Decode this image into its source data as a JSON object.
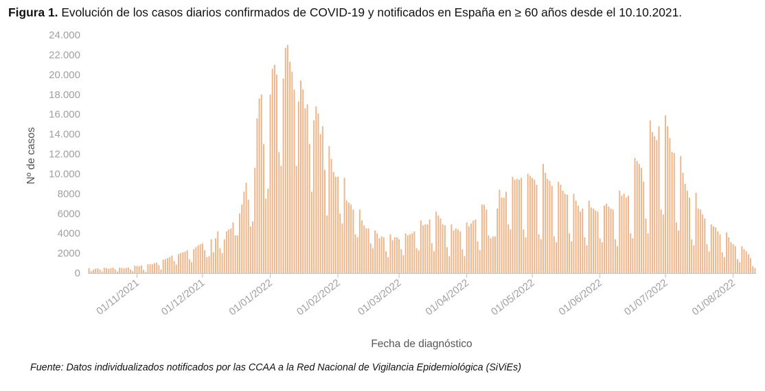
{
  "figure": {
    "label": "Figura 1.",
    "title": "Evolución de los casos diarios confirmados de COVID-19 y notificados en España en ≥ 60 años desde el 10.10.2021.",
    "source": "Fuente: Datos individualizados notificados por las CCAA a la Red Nacional de Vigilancia Epidemiológica (SiViEs)"
  },
  "colors": {
    "bar": "#f0b487",
    "axis": "#bdbdbd"
  },
  "chart_data": {
    "type": "bar",
    "title": "Evolución de los casos diarios confirmados de COVID-19 y notificados en España en ≥ 60 años desde el 10.10.2021.",
    "xlabel": "Fecha de diagnóstico",
    "ylabel": "Nº de casos",
    "ylim": [
      0,
      24000
    ],
    "grid": false,
    "x_start": "2021-10-10",
    "x_end": "2022-08-17",
    "y_ticks": [
      {
        "value": 0,
        "label": "0"
      },
      {
        "value": 2000,
        "label": "2000"
      },
      {
        "value": 4000,
        "label": "4000"
      },
      {
        "value": 6000,
        "label": "6000"
      },
      {
        "value": 8000,
        "label": "8000"
      },
      {
        "value": 10000,
        "label": "10.000"
      },
      {
        "value": 12000,
        "label": "12.000"
      },
      {
        "value": 14000,
        "label": "14.000"
      },
      {
        "value": 16000,
        "label": "16.000"
      },
      {
        "value": 18000,
        "label": "18.000"
      },
      {
        "value": 20000,
        "label": "20.000"
      },
      {
        "value": 22000,
        "label": "22.000"
      },
      {
        "value": 24000,
        "label": "24.000"
      }
    ],
    "x_ticks": [
      {
        "date": "2021-11-01",
        "label": "01/11/2021"
      },
      {
        "date": "2021-12-01",
        "label": "01/12/2021"
      },
      {
        "date": "2022-01-01",
        "label": "01/01/2022"
      },
      {
        "date": "2022-02-01",
        "label": "01/02/2022"
      },
      {
        "date": "2022-03-01",
        "label": "01/03/2022"
      },
      {
        "date": "2022-04-01",
        "label": "01/04/2022"
      },
      {
        "date": "2022-05-01",
        "label": "01/05/2022"
      },
      {
        "date": "2022-06-01",
        "label": "01/06/2022"
      },
      {
        "date": "2022-07-01",
        "label": "01/07/2022"
      },
      {
        "date": "2022-08-01",
        "label": "01/08/2022"
      }
    ],
    "values": [
      500,
      180,
      350,
      450,
      480,
      360,
      150,
      530,
      500,
      430,
      500,
      550,
      380,
      160,
      530,
      520,
      460,
      510,
      560,
      350,
      190,
      750,
      710,
      700,
      760,
      330,
      100,
      890,
      880,
      910,
      1000,
      1050,
      780,
      370,
      1350,
      1400,
      1500,
      1600,
      1750,
      1200,
      850,
      1900,
      2000,
      2100,
      2150,
      2300,
      1400,
      1100,
      2400,
      2600,
      2800,
      2900,
      3000,
      2300,
      1600,
      1700,
      3400,
      2100,
      3500,
      4200,
      2500,
      2000,
      3400,
      4200,
      4400,
      4500,
      5100,
      3800,
      3800,
      6000,
      6900,
      8200,
      9100,
      7400,
      4700,
      5200,
      10600,
      15600,
      17600,
      18000,
      13000,
      7500,
      8500,
      18000,
      20600,
      21000,
      20000,
      12200,
      10800,
      19600,
      22700,
      23000,
      21300,
      20300,
      18500,
      10800,
      17300,
      19400,
      18500,
      16600,
      17000,
      13000,
      8200,
      15400,
      16800,
      16100,
      14000,
      14800,
      10400,
      5800,
      12800,
      11500,
      10200,
      9700,
      9700,
      6000,
      5000,
      9600,
      7300,
      7100,
      6900,
      6400,
      3900,
      3600,
      6400,
      5300,
      4800,
      4500,
      4500,
      3000,
      2500,
      4300,
      4000,
      3500,
      3700,
      3600,
      2200,
      1600,
      3900,
      3300,
      3600,
      3600,
      3400,
      2400,
      1800,
      4000,
      3800,
      3900,
      4000,
      4200,
      2500,
      2300,
      5300,
      4800,
      4900,
      4900,
      5400,
      3000,
      2200,
      6200,
      5800,
      5500,
      4900,
      4800,
      2600,
      1700,
      4900,
      4300,
      4500,
      4400,
      4200,
      2400,
      1700,
      5100,
      4700,
      5000,
      5300,
      5400,
      3200,
      2300,
      6900,
      6900,
      6400,
      3800,
      3500,
      3700,
      3700,
      6500,
      8400,
      7600,
      7600,
      8200,
      4900,
      4400,
      9700,
      9400,
      9500,
      9400,
      9600,
      4400,
      3600,
      10000,
      9800,
      9600,
      9400,
      8900,
      3900,
      3400,
      11000,
      10100,
      9500,
      9300,
      8800,
      3700,
      3100,
      9200,
      8900,
      8300,
      8000,
      7900,
      4000,
      3200,
      8000,
      7300,
      6800,
      6200,
      6500,
      3600,
      2800,
      7300,
      6600,
      6500,
      6300,
      6200,
      3500,
      3100,
      6800,
      7000,
      6700,
      6500,
      6400,
      3400,
      2700,
      8300,
      7800,
      8000,
      7600,
      7800,
      4000,
      3500,
      11600,
      11300,
      11000,
      10600,
      9200,
      5500,
      4000,
      15400,
      14200,
      13800,
      13400,
      14800,
      6400,
      5900,
      15900,
      14800,
      13600,
      12200,
      12100,
      5100,
      4300,
      11800,
      10100,
      9000,
      8300,
      7600,
      3400,
      2800,
      8100,
      6500,
      6400,
      5900,
      5500,
      2900,
      2200,
      4900,
      4700,
      4600,
      4200,
      3900,
      2100,
      1600,
      4100,
      3600,
      3100,
      2900,
      2700,
      1400,
      1100,
      2700,
      2400,
      2200,
      1900,
      1500,
      700,
      500
    ]
  }
}
